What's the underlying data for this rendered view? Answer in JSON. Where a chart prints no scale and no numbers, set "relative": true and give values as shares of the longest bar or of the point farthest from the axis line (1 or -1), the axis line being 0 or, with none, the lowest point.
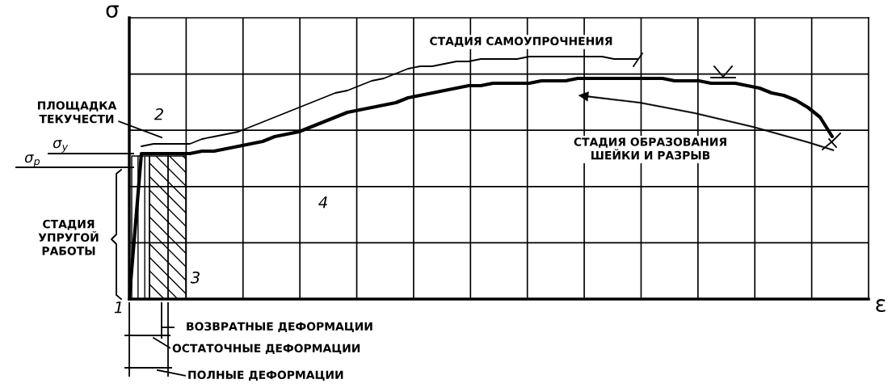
{
  "chart_data": {
    "type": "line",
    "relative": true,
    "xlabel": "ε",
    "ylabel": "σ",
    "grid": true,
    "categories": [
      null,
      null,
      null,
      null,
      null,
      null,
      null,
      null,
      null,
      null,
      null,
      null,
      null,
      null,
      null,
      null,
      null,
      null,
      null,
      null,
      null,
      null,
      null,
      null,
      null,
      null,
      null,
      null,
      null,
      null,
      null,
      null,
      null,
      null,
      null,
      null,
      null,
      null,
      null,
      null,
      null,
      null,
      null,
      null,
      null,
      null,
      null,
      null,
      null,
      null,
      null,
      null,
      null,
      null,
      null,
      null,
      null,
      null,
      null
    ],
    "series": [
      {
        "color": "#000000",
        "values": [
          0,
          0.6,
          0.6,
          0.6,
          0.6,
          0.6,
          0.61,
          0.61,
          0.62,
          0.63,
          0.64,
          0.65,
          0.67,
          0.68,
          0.69,
          0.71,
          0.73,
          0.75,
          0.77,
          0.78,
          0.79,
          0.8,
          0.81,
          0.83,
          0.84,
          0.85,
          0.86,
          0.87,
          0.88,
          0.88,
          0.89,
          0.89,
          0.89,
          0.89,
          0.9,
          0.9,
          0.9,
          0.91,
          0.91,
          0.91,
          0.91,
          0.91,
          0.91,
          0.91,
          0.91,
          0.9,
          0.9,
          0.9,
          0.89,
          0.89,
          0.89,
          0.88,
          0.87,
          0.85,
          0.84,
          0.82,
          0.79,
          0.75,
          0.67
        ]
      },
      {
        "color": "#000000",
        "values": [
          null,
          0.63,
          0.64,
          0.64,
          0.64,
          0.64,
          0.66,
          0.67,
          0.68,
          0.69,
          0.71,
          0.73,
          0.75,
          0.77,
          0.79,
          0.81,
          0.83,
          0.85,
          0.86,
          0.88,
          0.9,
          0.91,
          0.93,
          0.95,
          0.96,
          0.96,
          0.97,
          0.98,
          0.98,
          0.99,
          0.99,
          0.99,
          0.99,
          1.0,
          1.0,
          1.0,
          1.0,
          1.0,
          1.0,
          1.0,
          0.99,
          0.99,
          0.99,
          null,
          null,
          null,
          null,
          null,
          null,
          null,
          null,
          null,
          null,
          null,
          null,
          null,
          null,
          null,
          null
        ]
      }
    ],
    "annotations": [
      "ПЛОЩАДКА\nТЕКУЧЕСТИ",
      "СТАДИЯ САМОУПРОЧНЕНИЯ",
      "СТАДИЯ ОБРАЗОВАНИЯ\nШЕЙКИ И РАЗРЫВ",
      "СТАДИЯ\nУПРУГОЙ\nРАБОТЫ",
      "ВОЗВРАТНЫЕ ДЕФОРМАЦИИ",
      "ОСТАТОЧНЫЕ ДЕФОРМАЦИИ",
      "ПОЛНЫЕ ДЕФОРМАЦИИ",
      "1",
      "2",
      "3",
      "4",
      "σ$_{р}$",
      "σ$_{у}$"
    ]
  }
}
